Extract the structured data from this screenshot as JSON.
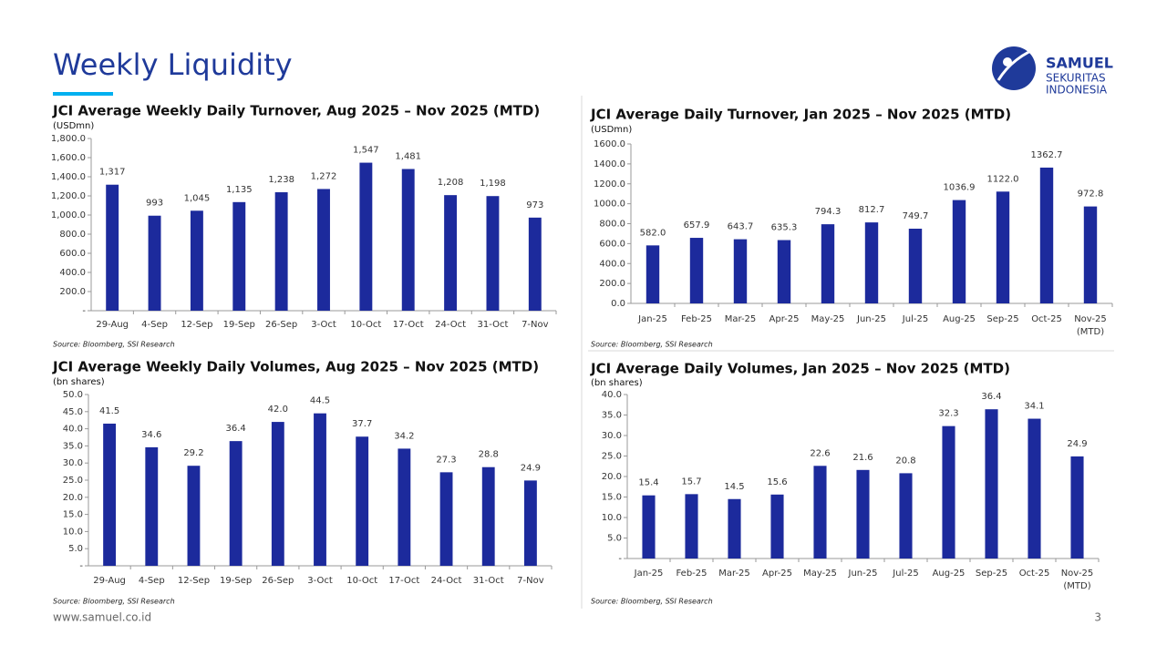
{
  "page": {
    "title": "Weekly Liquidity",
    "logo": [
      "SAMUEL",
      "SEKURITAS",
      "INDONESIA"
    ],
    "website": "www.samuel.co.id",
    "page_number": "3"
  },
  "chart_data": [
    {
      "type": "bar",
      "title": "JCI Average Weekly Daily Turnover, Aug 2025 – Nov 2025 (MTD)",
      "unit": "(USDmn)",
      "source": "Source: Bloomberg, SSI Research",
      "categories": [
        "29-Aug",
        "4-Sep",
        "12-Sep",
        "19-Sep",
        "26-Sep",
        "3-Oct",
        "10-Oct",
        "17-Oct",
        "24-Oct",
        "31-Oct",
        "7-Nov"
      ],
      "values": [
        1317,
        993,
        1045,
        1135,
        1238,
        1272,
        1547,
        1481,
        1208,
        1198,
        973
      ],
      "value_labels": [
        "1,317",
        "993",
        "1,045",
        "1,135",
        "1,238",
        "1,272",
        "1,547",
        "1,481",
        "1,208",
        "1,198",
        "973"
      ],
      "color": "#1c2a9c",
      "ylim": [
        0,
        1800
      ],
      "yticks": [
        {
          "value": 0,
          "label": "-"
        },
        {
          "value": 200,
          "label": "200.0"
        },
        {
          "value": 400,
          "label": "400.0"
        },
        {
          "value": 600,
          "label": "600.0"
        },
        {
          "value": 800,
          "label": "800.0"
        },
        {
          "value": 1000,
          "label": "1,000.0"
        },
        {
          "value": 1200,
          "label": "1,200.0"
        },
        {
          "value": 1400,
          "label": "1,400.0"
        },
        {
          "value": 1600,
          "label": "1,600.0"
        },
        {
          "value": 1800,
          "label": "1,800.0"
        }
      ]
    },
    {
      "type": "bar",
      "title": "JCI Average Daily Turnover, Jan 2025 – Nov 2025 (MTD)",
      "unit": "(USDmn)",
      "source": "Source: Bloomberg, SSI Research",
      "categories": [
        "Jan-25",
        "Feb-25",
        "Mar-25",
        "Apr-25",
        "May-25",
        "Jun-25",
        "Jul-25",
        "Aug-25",
        "Sep-25",
        "Oct-25",
        "Nov-25\n(MTD)"
      ],
      "values": [
        582.0,
        657.9,
        643.7,
        635.3,
        794.3,
        812.7,
        749.7,
        1036.9,
        1122.0,
        1362.7,
        972.8
      ],
      "value_labels": [
        "582.0",
        "657.9",
        "643.7",
        "635.3",
        "794.3",
        "812.7",
        "749.7",
        "1036.9",
        "1122.0",
        "1362.7",
        "972.8"
      ],
      "color": "#1c2a9c",
      "ylim": [
        0,
        1600
      ],
      "yticks": [
        {
          "value": 0,
          "label": "0.0"
        },
        {
          "value": 200,
          "label": "200.0"
        },
        {
          "value": 400,
          "label": "400.0"
        },
        {
          "value": 600,
          "label": "600.0"
        },
        {
          "value": 800,
          "label": "800.0"
        },
        {
          "value": 1000,
          "label": "1000.0"
        },
        {
          "value": 1200,
          "label": "1200.0"
        },
        {
          "value": 1400,
          "label": "1400.0"
        },
        {
          "value": 1600,
          "label": "1600.0"
        }
      ]
    },
    {
      "type": "bar",
      "title": "JCI Average Weekly Daily Volumes, Aug 2025 – Nov 2025 (MTD)",
      "unit": "(bn shares)",
      "source": "Source: Bloomberg, SSI Research",
      "categories": [
        "29-Aug",
        "4-Sep",
        "12-Sep",
        "19-Sep",
        "26-Sep",
        "3-Oct",
        "10-Oct",
        "17-Oct",
        "24-Oct",
        "31-Oct",
        "7-Nov"
      ],
      "values": [
        41.5,
        34.6,
        29.2,
        36.4,
        42.0,
        44.5,
        37.7,
        34.2,
        27.3,
        28.8,
        24.9
      ],
      "value_labels": [
        "41.5",
        "34.6",
        "29.2",
        "36.4",
        "42.0",
        "44.5",
        "37.7",
        "34.2",
        "27.3",
        "28.8",
        "24.9"
      ],
      "color": "#1c2a9c",
      "ylim": [
        0,
        50
      ],
      "yticks": [
        {
          "value": 0,
          "label": "-"
        },
        {
          "value": 5,
          "label": "5.0"
        },
        {
          "value": 10,
          "label": "10.0"
        },
        {
          "value": 15,
          "label": "15.0"
        },
        {
          "value": 20,
          "label": "20.0"
        },
        {
          "value": 25,
          "label": "25.0"
        },
        {
          "value": 30,
          "label": "30.0"
        },
        {
          "value": 35,
          "label": "35.0"
        },
        {
          "value": 40,
          "label": "40.0"
        },
        {
          "value": 45,
          "label": "45.0"
        },
        {
          "value": 50,
          "label": "50.0"
        }
      ]
    },
    {
      "type": "bar",
      "title": "JCI Average Daily Volumes, Jan 2025 – Nov 2025 (MTD)",
      "unit": "(bn shares)",
      "source": "Source: Bloomberg, SSI Research",
      "categories": [
        "Jan-25",
        "Feb-25",
        "Mar-25",
        "Apr-25",
        "May-25",
        "Jun-25",
        "Jul-25",
        "Aug-25",
        "Sep-25",
        "Oct-25",
        "Nov-25\n(MTD)"
      ],
      "values": [
        15.4,
        15.7,
        14.5,
        15.6,
        22.6,
        21.6,
        20.8,
        32.3,
        36.4,
        34.1,
        24.9
      ],
      "value_labels": [
        "15.4",
        "15.7",
        "14.5",
        "15.6",
        "22.6",
        "21.6",
        "20.8",
        "32.3",
        "36.4",
        "34.1",
        "24.9"
      ],
      "color": "#1c2a9c",
      "ylim": [
        0,
        40
      ],
      "yticks": [
        {
          "value": 0,
          "label": "-"
        },
        {
          "value": 5,
          "label": "5.0"
        },
        {
          "value": 10,
          "label": "10.0"
        },
        {
          "value": 15,
          "label": "15.0"
        },
        {
          "value": 20,
          "label": "20.0"
        },
        {
          "value": 25,
          "label": "25.0"
        },
        {
          "value": 30,
          "label": "30.0"
        },
        {
          "value": 35,
          "label": "35.0"
        },
        {
          "value": 40,
          "label": "40.0"
        }
      ]
    }
  ]
}
